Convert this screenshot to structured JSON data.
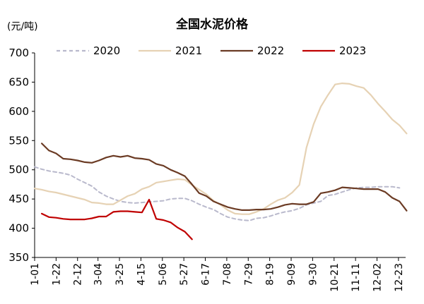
{
  "chart_data": {
    "type": "line",
    "title": "全国水泥价格",
    "ylabel": "(元/吨)",
    "xlabel": "",
    "ylim": [
      350,
      700
    ],
    "yticks": [
      350,
      400,
      450,
      500,
      550,
      600,
      650,
      700
    ],
    "x_tick_labels": [
      "1-01",
      "1-22",
      "2-12",
      "3-04",
      "3-25",
      "4-15",
      "5-06",
      "5-27",
      "6-17",
      "7-08",
      "7-29",
      "8-19",
      "9-09",
      "9-30",
      "10-21",
      "11-11",
      "12-02",
      "12-23"
    ],
    "x_tick_days": [
      0,
      21,
      42,
      62,
      83,
      104,
      125,
      146,
      167,
      188,
      209,
      230,
      251,
      272,
      293,
      314,
      335,
      356
    ],
    "x_range_days": [
      0,
      363
    ],
    "grid": false,
    "legend": "top",
    "series": [
      {
        "name": "2020",
        "color": "#b9b9cc",
        "style": "dashed",
        "x": [
          0,
          7,
          14,
          21,
          28,
          35,
          42,
          49,
          56,
          63,
          70,
          77,
          84,
          91,
          98,
          105,
          112,
          119,
          126,
          133,
          140,
          147,
          154,
          161,
          168,
          175,
          182,
          189,
          196,
          203,
          210,
          217,
          224,
          231,
          238,
          245,
          252,
          259,
          266,
          273,
          280,
          287,
          294,
          301,
          308,
          315,
          322,
          329,
          336,
          343,
          350,
          357
        ],
        "values": [
          505,
          501,
          498,
          496,
          494,
          491,
          484,
          478,
          472,
          462,
          455,
          450,
          446,
          444,
          443,
          444,
          445,
          446,
          447,
          450,
          451,
          451,
          447,
          441,
          436,
          432,
          425,
          419,
          416,
          414,
          413,
          417,
          418,
          421,
          425,
          428,
          430,
          434,
          440,
          443,
          446,
          456,
          458,
          462,
          466,
          469,
          470,
          470,
          471,
          471,
          471,
          469
        ]
      },
      {
        "name": "2021",
        "color": "#e6d2b4",
        "style": "solid",
        "x": [
          0,
          7,
          14,
          21,
          28,
          35,
          42,
          49,
          56,
          63,
          70,
          77,
          84,
          91,
          98,
          105,
          112,
          119,
          126,
          133,
          140,
          147,
          154,
          161,
          168,
          175,
          182,
          189,
          196,
          203,
          210,
          217,
          224,
          231,
          238,
          245,
          252,
          259,
          266,
          273,
          280,
          287,
          294,
          301,
          308,
          315,
          322,
          329,
          336,
          343,
          350,
          357,
          364
        ],
        "values": [
          468,
          466,
          463,
          461,
          458,
          455,
          452,
          449,
          444,
          443,
          441,
          441,
          448,
          455,
          459,
          467,
          471,
          478,
          480,
          482,
          484,
          483,
          474,
          466,
          458,
          447,
          440,
          431,
          425,
          424,
          424,
          428,
          433,
          441,
          448,
          452,
          461,
          474,
          538,
          578,
          608,
          628,
          646,
          648,
          647,
          643,
          640,
          628,
          613,
          600,
          586,
          576,
          562
        ]
      },
      {
        "name": "2022",
        "color": "#6b3b24",
        "style": "solid",
        "x": [
          7,
          14,
          21,
          28,
          35,
          42,
          49,
          56,
          63,
          70,
          77,
          84,
          91,
          98,
          105,
          112,
          119,
          126,
          133,
          140,
          147,
          154,
          161,
          168,
          175,
          182,
          189,
          196,
          203,
          210,
          217,
          224,
          231,
          238,
          245,
          252,
          259,
          266,
          273,
          280,
          287,
          294,
          301,
          308,
          315,
          322,
          329,
          336,
          343,
          350,
          357,
          364
        ],
        "values": [
          545,
          533,
          528,
          519,
          518,
          516,
          513,
          512,
          516,
          521,
          524,
          522,
          524,
          520,
          519,
          517,
          510,
          507,
          500,
          495,
          489,
          475,
          460,
          455,
          446,
          441,
          436,
          433,
          431,
          431,
          432,
          432,
          433,
          436,
          440,
          442,
          441,
          441,
          445,
          460,
          462,
          465,
          470,
          469,
          468,
          467,
          467,
          467,
          462,
          452,
          446,
          430
        ]
      },
      {
        "name": "2023",
        "color": "#c00000",
        "style": "solid",
        "x": [
          7,
          14,
          21,
          28,
          35,
          42,
          49,
          56,
          63,
          70,
          77,
          84,
          91,
          98,
          105,
          112,
          119,
          126,
          133,
          140,
          147,
          154
        ],
        "values": [
          425,
          419,
          418,
          416,
          415,
          415,
          415,
          417,
          420,
          420,
          428,
          429,
          429,
          428,
          427,
          449,
          416,
          414,
          410,
          401,
          394,
          381
        ]
      }
    ]
  }
}
